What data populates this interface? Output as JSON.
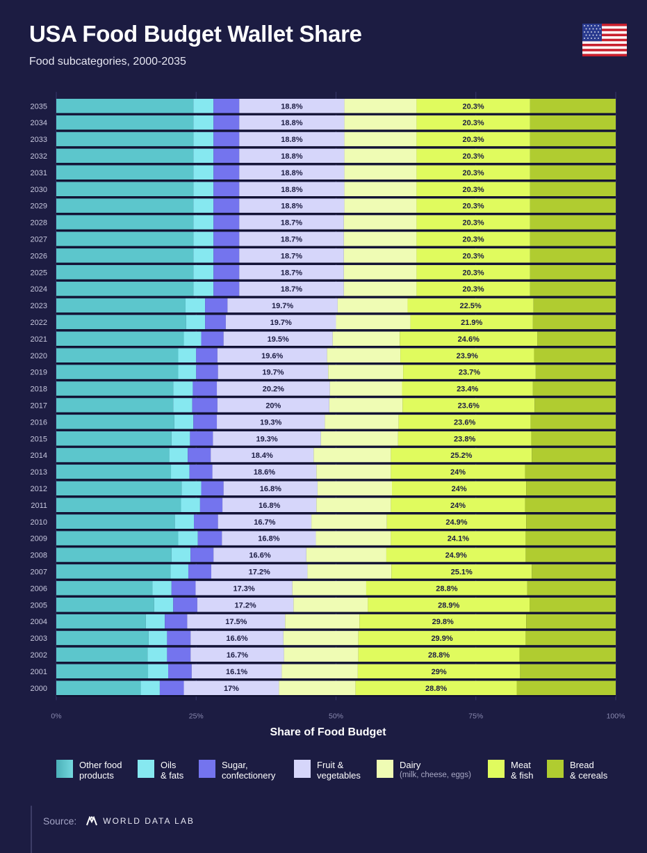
{
  "header": {
    "title": "USA Food Budget Wallet Share",
    "subtitle": "Food subcategories, 2000-2035"
  },
  "chart_data": {
    "type": "bar",
    "orientation": "horizontal",
    "stacked": true,
    "title": "USA Food Budget Wallet Share",
    "subtitle": "Food subcategories, 2000-2035",
    "xlabel": "Share of Food Budget",
    "ylabel": "",
    "xlim": [
      0,
      100
    ],
    "x_ticks": [
      "0%",
      "25%",
      "50%",
      "75%",
      "100%"
    ],
    "categories": [
      "2035",
      "2034",
      "2033",
      "2032",
      "2031",
      "2030",
      "2029",
      "2028",
      "2027",
      "2026",
      "2025",
      "2024",
      "2023",
      "2022",
      "2021",
      "2020",
      "2019",
      "2018",
      "2017",
      "2016",
      "2015",
      "2014",
      "2013",
      "2012",
      "2011",
      "2010",
      "2009",
      "2008",
      "2007",
      "2006",
      "2005",
      "2004",
      "2003",
      "2002",
      "2001",
      "2000"
    ],
    "series": [
      {
        "name": "Other food products",
        "color": "#5cc6cc",
        "values": [
          24.5,
          24.5,
          24.5,
          24.5,
          24.5,
          24.5,
          24.5,
          24.5,
          24.5,
          24.5,
          24.5,
          24.5,
          23.1,
          23.2,
          22.8,
          21.8,
          21.8,
          20.9,
          20.9,
          21.1,
          20.6,
          20.2,
          20.5,
          22.4,
          22.3,
          21.2,
          21.8,
          20.6,
          20.4,
          17.2,
          17.5,
          16.0,
          16.5,
          16.3,
          16.4,
          15.1
        ]
      },
      {
        "name": "Oils & fats",
        "color": "#86e8f0",
        "values": [
          3.6,
          3.6,
          3.6,
          3.6,
          3.6,
          3.6,
          3.6,
          3.6,
          3.6,
          3.6,
          3.6,
          3.6,
          3.5,
          3.4,
          3.1,
          3.2,
          3.2,
          3.5,
          3.4,
          3.4,
          3.3,
          3.3,
          3.3,
          3.5,
          3.4,
          3.4,
          3.5,
          3.4,
          3.2,
          3.4,
          3.4,
          3.4,
          3.3,
          3.5,
          3.6,
          3.4
        ]
      },
      {
        "name": "Sugar, confectionery",
        "color": "#7474ee",
        "values": [
          4.6,
          4.6,
          4.6,
          4.6,
          4.6,
          4.6,
          4.6,
          4.6,
          4.6,
          4.6,
          4.6,
          4.6,
          4.0,
          3.7,
          4.0,
          3.8,
          3.9,
          4.3,
          4.5,
          4.2,
          4.1,
          4.1,
          4.1,
          4.0,
          4.0,
          4.3,
          4.3,
          4.1,
          4.1,
          4.3,
          4.3,
          4.0,
          4.2,
          4.2,
          4.2,
          4.3
        ]
      },
      {
        "name": "Fruit & vegetables",
        "color": "#d6d6fa",
        "labelled": true,
        "values": [
          18.8,
          18.8,
          18.8,
          18.8,
          18.8,
          18.8,
          18.8,
          18.7,
          18.7,
          18.7,
          18.7,
          18.7,
          19.7,
          19.7,
          19.5,
          19.6,
          19.7,
          20.2,
          20.0,
          19.3,
          19.3,
          18.4,
          18.6,
          16.8,
          16.8,
          16.7,
          16.8,
          16.6,
          17.2,
          17.3,
          17.2,
          17.5,
          16.6,
          16.7,
          16.1,
          17.0
        ]
      },
      {
        "name": "Dairy (milk, cheese, eggs)",
        "color": "#effcb4",
        "values": [
          12.9,
          12.9,
          12.9,
          12.9,
          12.9,
          12.9,
          12.9,
          13.0,
          13.0,
          13.0,
          13.0,
          13.0,
          12.5,
          13.3,
          12.0,
          13.1,
          13.4,
          12.9,
          13.1,
          13.2,
          13.8,
          13.8,
          13.3,
          13.3,
          13.3,
          13.5,
          13.4,
          14.3,
          15.0,
          13.2,
          13.3,
          13.3,
          13.4,
          13.3,
          13.6,
          13.7
        ]
      },
      {
        "name": "Meat & fish",
        "color": "#e0fb5e",
        "labelled": true,
        "values": [
          20.3,
          20.3,
          20.3,
          20.3,
          20.3,
          20.3,
          20.3,
          20.3,
          20.3,
          20.3,
          20.3,
          20.3,
          22.5,
          21.9,
          24.6,
          23.9,
          23.7,
          23.4,
          23.6,
          23.6,
          23.8,
          25.2,
          24.0,
          24.0,
          24.0,
          24.9,
          24.1,
          24.9,
          25.1,
          28.8,
          28.9,
          29.8,
          29.9,
          28.8,
          29.0,
          28.8
        ]
      },
      {
        "name": "Bread & cereals",
        "color": "#b0cc30",
        "values": [
          15.3,
          15.3,
          15.3,
          15.3,
          15.3,
          15.3,
          15.3,
          15.3,
          15.3,
          15.3,
          15.3,
          15.3,
          14.7,
          14.8,
          14.0,
          14.6,
          14.3,
          14.8,
          14.5,
          15.2,
          15.1,
          15.0,
          16.2,
          16.0,
          16.2,
          16.0,
          16.1,
          16.1,
          15.0,
          15.8,
          15.4,
          16.0,
          16.1,
          17.2,
          17.1,
          17.7
        ]
      }
    ],
    "data_labels": {
      "Fruit & vegetables": [
        "18.8%",
        "18.8%",
        "18.8%",
        "18.8%",
        "18.8%",
        "18.8%",
        "18.8%",
        "18.7%",
        "18.7%",
        "18.7%",
        "18.7%",
        "18.7%",
        "19.7%",
        "19.7%",
        "19.5%",
        "19.6%",
        "19.7%",
        "20.2%",
        "20%",
        "19.3%",
        "19.3%",
        "18.4%",
        "18.6%",
        "16.8%",
        "16.8%",
        "16.7%",
        "16.8%",
        "16.6%",
        "17.2%",
        "17.3%",
        "17.2%",
        "17.5%",
        "16.6%",
        "16.7%",
        "16.1%",
        "17%"
      ],
      "Meat & fish": [
        "20.3%",
        "20.3%",
        "20.3%",
        "20.3%",
        "20.3%",
        "20.3%",
        "20.3%",
        "20.3%",
        "20.3%",
        "20.3%",
        "20.3%",
        "20.3%",
        "22.5%",
        "21.9%",
        "24.6%",
        "23.9%",
        "23.7%",
        "23.4%",
        "23.6%",
        "23.6%",
        "23.8%",
        "25.2%",
        "24%",
        "24%",
        "24%",
        "24.9%",
        "24.1%",
        "24.9%",
        "25.1%",
        "28.8%",
        "28.9%",
        "29.8%",
        "29.9%",
        "28.8%",
        "29%",
        "28.8%"
      ]
    },
    "grid": true,
    "legend": "bottom"
  },
  "legend": [
    {
      "name": "other-food-products",
      "color": "#5cc6cc",
      "line1": "Other food",
      "line2": "products"
    },
    {
      "name": "oils-fats",
      "color": "#86e8f0",
      "line1": "Oils",
      "line2": "& fats"
    },
    {
      "name": "sugar-confectionery",
      "color": "#7474ee",
      "line1": "Sugar,",
      "line2": "confectionery"
    },
    {
      "name": "fruit-vegetables",
      "color": "#d6d6fa",
      "line1": "Fruit &",
      "line2": "vegetables"
    },
    {
      "name": "dairy",
      "color": "#effcb4",
      "line1": "Dairy",
      "line2": "(milk, cheese, eggs)"
    },
    {
      "name": "meat-fish",
      "color": "#e0fb5e",
      "line1": "Meat",
      "line2": "& fish"
    },
    {
      "name": "bread-cereals",
      "color": "#b0cc30",
      "line1": "Bread",
      "line2": "& cereals"
    }
  ],
  "footer": {
    "source_label": "Source:",
    "brand": "WORLD DATA LAB"
  }
}
